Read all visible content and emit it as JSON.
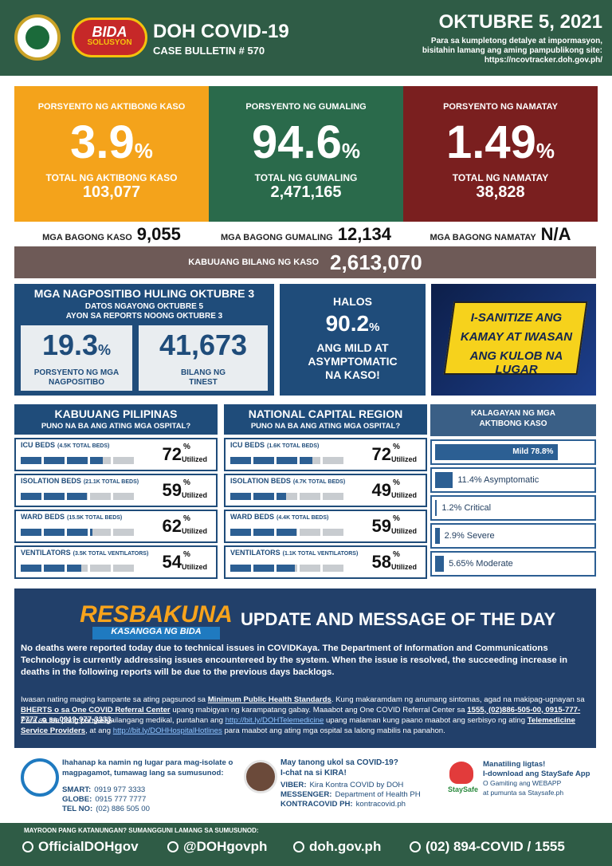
{
  "header": {
    "title": "DOH COVID-19",
    "bulletin": "CASE BULLETIN # 570",
    "date": "OKTUBRE 5, 2021",
    "note": [
      "Para sa kumpletong detalye at impormasyon,",
      "bisitahin lamang ang aming pampublikong site:",
      "https://ncovtracker.doh.gov.ph/"
    ],
    "logo_text": [
      "BIDA",
      "SOLUSYON"
    ]
  },
  "rates": [
    {
      "label": "PORSYENTO NG AKTIBONG KASO",
      "value": "3.9",
      "unit": "%",
      "total_label": "TOTAL NG AKTIBONG KASO",
      "total": "103,077"
    },
    {
      "label": "PORSYENTO NG GUMALING",
      "value": "94.6",
      "unit": "%",
      "total_label": "TOTAL NG GUMALING",
      "total": "2,471,165"
    },
    {
      "label": "PORSYENTO NG NAMATAY",
      "value": "1.49",
      "unit": "%",
      "total_label": "TOTAL NG NAMATAY",
      "total": "38,828"
    }
  ],
  "new": [
    {
      "label": "MGA BAGONG KASO",
      "value": "9,055"
    },
    {
      "label": "MGA BAGONG GUMALING",
      "value": "12,134"
    },
    {
      "label": "MGA BAGONG NAMATAY",
      "value": "N/A"
    }
  ],
  "total": {
    "label": "KABUUANG BILANG NG KASO",
    "value": "2,613,070"
  },
  "positivity": {
    "title": "MGA NAGPOSITIBO HULING OKTUBRE 3",
    "subtitle": [
      "DATOS NGAYONG OKTUBRE 5",
      "AYON SA REPORTS NOONG OKTUBRE 3"
    ],
    "rate": "19.3",
    "unit": "%",
    "rate_label": [
      "PORSYENTO NG MGA",
      "NAGPOSITIBO"
    ],
    "tests": "41,673",
    "tests_label": [
      "BILANG NG",
      "TINEST"
    ]
  },
  "mild": {
    "lead": "HALOS",
    "value": "90.2",
    "unit": "%",
    "text": [
      "ANG MILD AT",
      "ASYMPTOMATIC",
      "NA KASO!"
    ]
  },
  "banner": [
    "I-SANITIZE ANG",
    "KAMAY AT IWASAN",
    "ANG KULOB NA LUGAR"
  ],
  "hospitals": {
    "unit": "%",
    "unit_label": "Utilized",
    "regions": [
      {
        "title": "KABUUANG PILIPINAS",
        "subtitle": "PUNO NA BA ANG ATING MGA OSPITAL?",
        "rows": [
          {
            "label": "ICU BEDS",
            "capacity": "(4.5K TOTAL BEDS)",
            "value": 72
          },
          {
            "label": "ISOLATION BEDS",
            "capacity": "(21.1K TOTAL BEDS)",
            "value": 59
          },
          {
            "label": "WARD BEDS",
            "capacity": "(15.5K TOTAL BEDS)",
            "value": 62
          },
          {
            "label": "VENTILATORS",
            "capacity": "(3.5K TOTAL VENTILATORS)",
            "value": 54
          }
        ]
      },
      {
        "title": "NATIONAL CAPITAL REGION",
        "subtitle": "PUNO NA BA ANG ATING MGA OSPITAL?",
        "rows": [
          {
            "label": "ICU BEDS",
            "capacity": "(1.6K TOTAL BEDS)",
            "value": 72
          },
          {
            "label": "ISOLATION BEDS",
            "capacity": "(4.7K TOTAL BEDS)",
            "value": 49
          },
          {
            "label": "WARD BEDS",
            "capacity": "(4.4K TOTAL BEDS)",
            "value": 59
          },
          {
            "label": "VENTILATORS",
            "capacity": "(1.1K TOTAL VENTILATORS)",
            "value": 58
          }
        ]
      }
    ]
  },
  "status": {
    "title": [
      "KALAGAYAN NG MGA",
      "AKTIBONG KASO"
    ],
    "items": [
      {
        "label": "Mild 78.8%",
        "value": 78.8
      },
      {
        "label": "11.4% Asymptomatic",
        "value": 11.4
      },
      {
        "label": "1.2% Critical",
        "value": 1.2
      },
      {
        "label": "2.9% Severe",
        "value": 2.9
      },
      {
        "label": "5.65% Moderate",
        "value": 5.65
      }
    ]
  },
  "update": {
    "logo": [
      "RESBAKUNA",
      "KASANGGA NG BIDA"
    ],
    "title": "UPDATE AND MESSAGE OF THE DAY",
    "lead": "No deaths were reported today due to technical issues in COVIDKaya. The Department of Information and Communications Technology is currently addressing issues encountereed by the system. When the issue is resolved, the succeeding increase in deaths in the following reports will be due to the previous days backlogs.",
    "paragraphs": [
      [
        {
          "text": "Iwasan nating maging kampante sa ating pagsunod sa "
        },
        {
          "text": "Minimum Public Health Standards",
          "style": "b"
        },
        {
          "text": ". Kung makaramdam ng anumang sintomas, agad na makipag-ugnayan sa "
        },
        {
          "text": "BHERTS o sa One COVID Referral Center",
          "style": "b"
        },
        {
          "text": " upang mabigyan ng karampatang gabay. Maaabot ang One COVID Referral Center sa "
        },
        {
          "text": "1555, (02)886-505-00, 0915-777-7777, o sa 0919-977-3333",
          "style": "b"
        },
        {
          "text": "."
        }
      ],
      [
        {
          "text": "Para sa iba pang pangangailangang medikal, puntahan ang "
        },
        {
          "text": "http://bit.ly/DOHTelemedicine",
          "style": "a"
        },
        {
          "text": " upang malaman kung paano maabot ang serbisyo ng ating "
        },
        {
          "text": "Telemedicine Service Providers",
          "style": "b"
        },
        {
          "text": ", at ang "
        },
        {
          "text": "http://bit.ly/DOHHospitalHotlines",
          "style": "a"
        },
        {
          "text": " para maabot ang ating mga ospital sa lalong mabilis na panahon."
        }
      ]
    ]
  },
  "contacts": {
    "isolate": {
      "text": [
        "Ihahanap ka namin ng lugar para mag-isolate o",
        "magpagamot, tumawag lang sa sumusunod:"
      ],
      "lines": [
        [
          "SMART:",
          "0919 977 3333"
        ],
        [
          "GLOBE:",
          "0915 777 7777"
        ],
        [
          "TEL NO:",
          "(02) 886 505 00"
        ]
      ]
    },
    "kira": {
      "text": [
        "May tanong ukol sa COVID-19?",
        "I-chat na si KIRA!"
      ],
      "lines": [
        [
          "VIBER:",
          "Kira Kontra COVID by DOH"
        ],
        [
          "MESSENGER:",
          "Department of Health PH"
        ],
        [
          "KONTRACOVID PH:",
          "kontracovid.ph"
        ]
      ]
    },
    "staysafe": {
      "logo": "StaySafe",
      "lines": [
        "Manatiling ligtas!",
        "I-download ang StaySafe App",
        "O Gamiting ang WEBAPP",
        "at pumunta sa Staysafe.ph"
      ]
    }
  },
  "footer": {
    "note": "MAYROON PANG KATANUNGAN? SUMANGGUNI LAMANG SA SUMUSUNOD:",
    "items": [
      "OfficialDOHgov",
      "@DOHgovph",
      "doh.gov.ph",
      "(02) 894-COVID / 1555"
    ]
  }
}
